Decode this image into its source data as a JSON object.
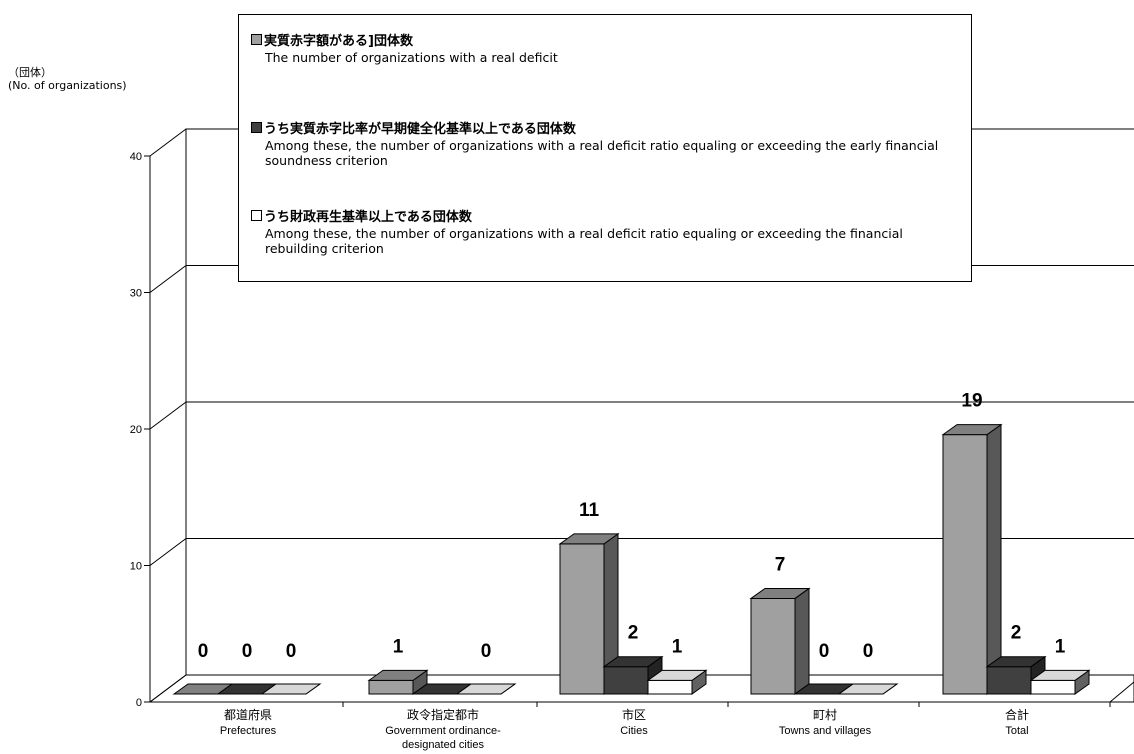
{
  "unit_label": {
    "jp": "（団体）",
    "en": "(No. of organizations)"
  },
  "legend": [
    {
      "jp": "実質赤字額がある]団体数",
      "en": "The number of organizations with a real deficit",
      "color": "#a0a0a0"
    },
    {
      "jp": "うち実質赤字比率が早期健全化基準以上である団体数",
      "en": "Among these, the number of organizations with a real deficit ratio equaling or exceeding the early financial soundness criterion",
      "color": "#404040"
    },
    {
      "jp": "うち財政再生基準以上である団体数",
      "en": "Among these, the number of organizations with a real deficit ratio equaling or exceeding the financial rebuilding criterion",
      "color": "#ffffff"
    }
  ],
  "chart_data": {
    "type": "bar",
    "categories": [
      {
        "jp": "都道府県",
        "en": "Prefectures"
      },
      {
        "jp": "政令指定都市",
        "en": "Government ordinance-designated cities"
      },
      {
        "jp": "市区",
        "en": "Cities"
      },
      {
        "jp": "町村",
        "en": "Towns and villages"
      },
      {
        "jp": "合計",
        "en": "Total"
      }
    ],
    "series": [
      {
        "values": [
          0,
          1,
          11,
          7,
          19
        ],
        "color": "#a0a0a0"
      },
      {
        "values": [
          0,
          0,
          2,
          0,
          2
        ],
        "color": "#404040"
      },
      {
        "values": [
          0,
          0,
          1,
          0,
          1
        ],
        "color": "#ffffff"
      }
    ],
    "data_labels": [
      "0",
      "0",
      "0",
      "1",
      "",
      "0",
      "11",
      "2",
      "1",
      "7",
      "0",
      "0",
      "19",
      "2",
      "1"
    ],
    "y_ticks": [
      "0",
      "10",
      "20",
      "30",
      "40"
    ],
    "ylim": [
      0,
      40
    ],
    "grid": true,
    "legend_position": "top"
  }
}
